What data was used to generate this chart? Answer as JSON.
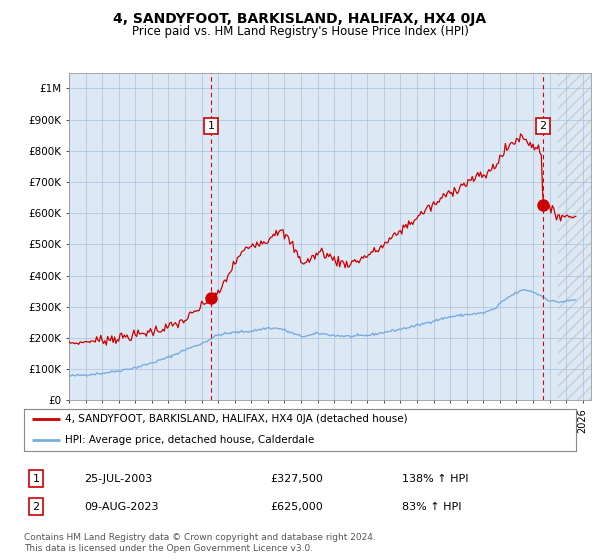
{
  "title": "4, SANDYFOOT, BARKISLAND, HALIFAX, HX4 0JA",
  "subtitle": "Price paid vs. HM Land Registry's House Price Index (HPI)",
  "ylabel_ticks": [
    "£0",
    "£100K",
    "£200K",
    "£300K",
    "£400K",
    "£500K",
    "£600K",
    "£700K",
    "£800K",
    "£900K",
    "£1M"
  ],
  "ytick_values": [
    0,
    100000,
    200000,
    300000,
    400000,
    500000,
    600000,
    700000,
    800000,
    900000,
    1000000
  ],
  "ylim": [
    0,
    1050000
  ],
  "xlim_start": 1995.0,
  "xlim_end": 2026.5,
  "chart_bg_color": "#dce9f5",
  "background_color": "#ffffff",
  "grid_color": "#b0c8e0",
  "red_color": "#cc0000",
  "blue_color": "#7aace0",
  "marker1_date": 2003.56,
  "marker1_value": 327500,
  "marker2_date": 2023.61,
  "marker2_value": 625000,
  "num1_x": 2003.56,
  "num1_y": 880000,
  "num2_x": 2023.61,
  "num2_y": 880000,
  "hatch_start": 2024.5,
  "sale1_label": "25-JUL-2003",
  "sale1_price": "£327,500",
  "sale1_hpi": "138% ↑ HPI",
  "sale2_label": "09-AUG-2023",
  "sale2_price": "£625,000",
  "sale2_hpi": "83% ↑ HPI",
  "legend_line1": "4, SANDYFOOT, BARKISLAND, HALIFAX, HX4 0JA (detached house)",
  "legend_line2": "HPI: Average price, detached house, Calderdale",
  "footer": "Contains HM Land Registry data © Crown copyright and database right 2024.\nThis data is licensed under the Open Government Licence v3.0."
}
